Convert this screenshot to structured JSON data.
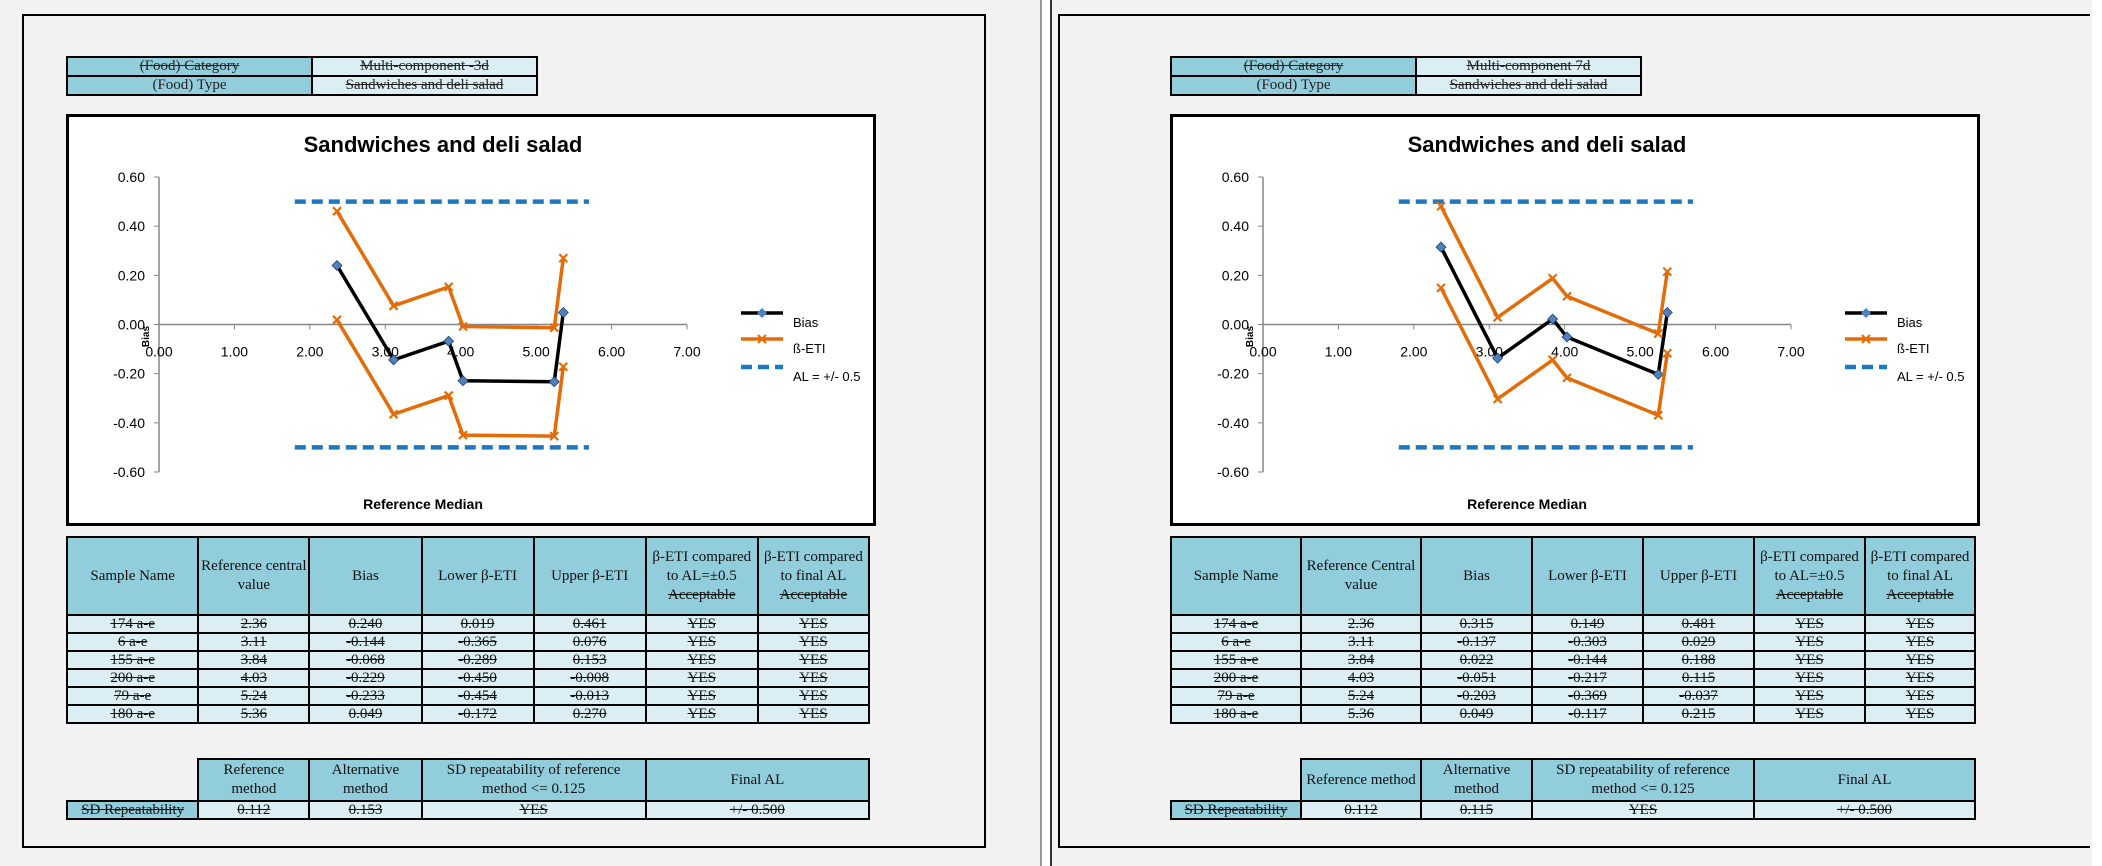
{
  "panels": [
    {
      "info": {
        "category_label": "(Food) Category",
        "category_value": "Multi-component -3d",
        "type_label": "(Food) Type",
        "type_value": "Sandwiches and deli salad"
      },
      "chart_data": {
        "type": "line",
        "title": "Sandwiches and deli salad",
        "xlabel": "Reference Median",
        "ylabel": "Bias",
        "xlim": [
          0,
          7
        ],
        "ylim": [
          -0.6,
          0.6
        ],
        "xticks": [
          "0.00",
          "1.00",
          "2.00",
          "3.00",
          "4.00",
          "5.00",
          "6.00",
          "7.00"
        ],
        "yticks": [
          "0.60",
          "0.40",
          "0.20",
          "0.00",
          "-0.20",
          "-0.40",
          "-0.60"
        ],
        "legend": [
          "Bias",
          "ß-ETI",
          "AL = +/- 0.5"
        ],
        "legend_position": "right",
        "al_x_range": [
          1.8,
          5.7
        ],
        "al_value": 0.5,
        "series": [
          {
            "key": "bias",
            "x": [
              2.36,
              3.11,
              3.84,
              4.03,
              5.24,
              5.36
            ],
            "y": [
              0.24,
              -0.144,
              -0.068,
              -0.229,
              -0.233,
              0.049
            ]
          },
          {
            "key": "lower",
            "x": [
              2.36,
              3.11,
              3.84,
              4.03,
              5.24,
              5.36
            ],
            "y": [
              0.019,
              -0.365,
              -0.289,
              -0.45,
              -0.454,
              -0.172
            ]
          },
          {
            "key": "upper",
            "x": [
              2.36,
              3.11,
              3.84,
              4.03,
              5.24,
              5.36
            ],
            "y": [
              0.461,
              0.076,
              0.153,
              -0.008,
              -0.013,
              0.27
            ]
          }
        ]
      },
      "results": {
        "headers": [
          "Sample Name",
          "Reference central value",
          "Bias",
          "Lower β-ETI",
          "Upper β-ETI",
          "β-ETI compared to AL=±0.5",
          "β-ETI compared to final AL"
        ],
        "accept_label": "Acceptable",
        "rows": [
          [
            "174 a-e",
            "2.36",
            "0.240",
            "0.019",
            "0.461",
            "YES",
            "YES"
          ],
          [
            "6 a-e",
            "3.11",
            "-0.144",
            "-0.365",
            "0.076",
            "YES",
            "YES"
          ],
          [
            "155 a-e",
            "3.84",
            "-0.068",
            "-0.289",
            "0.153",
            "YES",
            "YES"
          ],
          [
            "200 a-e",
            "4.03",
            "-0.229",
            "-0.450",
            "-0.008",
            "YES",
            "YES"
          ],
          [
            "79 a-e",
            "5.24",
            "-0.233",
            "-0.454",
            "-0.013",
            "YES",
            "YES"
          ],
          [
            "180 a-e",
            "5.36",
            "0.049",
            "-0.172",
            "0.270",
            "YES",
            "YES"
          ]
        ]
      },
      "repeatability": {
        "headers": [
          "Reference method",
          "Alternative method",
          "SD repeatability of reference method <= 0.125",
          "Final AL"
        ],
        "row_label": "SD Repeatability",
        "values": [
          "0.112",
          "0.153",
          "YES",
          "+/- 0.500"
        ]
      }
    },
    {
      "info": {
        "category_label": "(Food) Category",
        "category_value": "Multi-component 7d",
        "type_label": "(Food) Type",
        "type_value": "Sandwiches and deli salad"
      },
      "chart_data": {
        "type": "line",
        "title": "Sandwiches and deli salad",
        "xlabel": "Reference Median",
        "ylabel": "Bias",
        "xlim": [
          0,
          7
        ],
        "ylim": [
          -0.6,
          0.6
        ],
        "xticks": [
          "0.00",
          "1.00",
          "2.00",
          "3.00",
          "4.00",
          "5.00",
          "6.00",
          "7.00"
        ],
        "yticks": [
          "0.60",
          "0.40",
          "0.20",
          "0.00",
          "-0.20",
          "-0.40",
          "-0.60"
        ],
        "legend": [
          "Bias",
          "ß-ETI",
          "AL = +/- 0.5"
        ],
        "legend_position": "right",
        "al_x_range": [
          1.8,
          5.7
        ],
        "al_value": 0.5,
        "series": [
          {
            "key": "bias",
            "x": [
              2.36,
              3.11,
              3.84,
              4.03,
              5.24,
              5.36
            ],
            "y": [
              0.315,
              -0.137,
              0.022,
              -0.051,
              -0.203,
              0.049
            ]
          },
          {
            "key": "lower",
            "x": [
              2.36,
              3.11,
              3.84,
              4.03,
              5.24,
              5.36
            ],
            "y": [
              0.149,
              -0.303,
              -0.144,
              -0.217,
              -0.369,
              -0.117
            ]
          },
          {
            "key": "upper",
            "x": [
              2.36,
              3.11,
              3.84,
              4.03,
              5.24,
              5.36
            ],
            "y": [
              0.481,
              0.029,
              0.188,
              0.115,
              -0.037,
              0.215
            ]
          }
        ]
      },
      "results": {
        "headers": [
          "Sample Name",
          "Reference Central value",
          "Bias",
          "Lower β-ETI",
          "Upper β-ETI",
          "β-ETI compared to AL=±0.5",
          "β-ETI compared to final AL"
        ],
        "accept_label": "Acceptable",
        "rows": [
          [
            "174 a-e",
            "2.36",
            "0.315",
            "0.149",
            "0.481",
            "YES",
            "YES"
          ],
          [
            "6 a-e",
            "3.11",
            "-0.137",
            "-0.303",
            "0.029",
            "YES",
            "YES"
          ],
          [
            "155 a-e",
            "3.84",
            "0.022",
            "-0.144",
            "0.188",
            "YES",
            "YES"
          ],
          [
            "200 a-e",
            "4.03",
            "-0.051",
            "-0.217",
            "0.115",
            "YES",
            "YES"
          ],
          [
            "79 a-e",
            "5.24",
            "-0.203",
            "-0.369",
            "-0.037",
            "YES",
            "YES"
          ],
          [
            "180 a-e",
            "5.36",
            "0.049",
            "-0.117",
            "0.215",
            "YES",
            "YES"
          ]
        ]
      },
      "repeatability": {
        "headers": [
          "Reference method",
          "Alternative method",
          "SD repeatability of reference method <= 0.125",
          "Final AL"
        ],
        "row_label": "SD Repeatability",
        "values": [
          "0.112",
          "0.115",
          "YES",
          "+/- 0.500"
        ]
      }
    }
  ],
  "colors": {
    "bias": "#000000",
    "eti": "#e36c09",
    "al": "#1f77c0",
    "marker": "#4f81bd",
    "header_fill": "#92cddc",
    "cell_fill": "#daeef3"
  }
}
